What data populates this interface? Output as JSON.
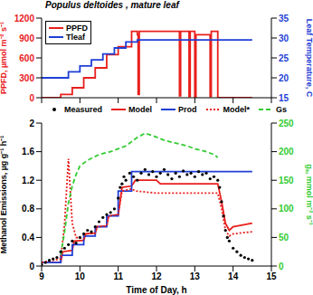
{
  "chart_data": [
    {
      "type": "line",
      "title": "Populus deltoides , mature leaf",
      "ylabel": "PPFD, µmol m⁻² s⁻¹",
      "y2label": "Leaf Temperature, C",
      "xlim": [
        9,
        15
      ],
      "xticks": [
        9,
        10,
        11,
        12,
        13,
        14,
        15
      ],
      "ylim": [
        0,
        1200
      ],
      "yticks": [
        0,
        300,
        600,
        900,
        1200
      ],
      "y2lim": [
        15,
        35
      ],
      "y2ticks": [
        15,
        20,
        25,
        30,
        35
      ],
      "tick_labels": "y",
      "legend": "upper left",
      "series": [
        {
          "name": "PPFD",
          "color": "#e8201c",
          "x": [
            9,
            9.5,
            9.5,
            9.8,
            9.8,
            10.1,
            10.1,
            10.4,
            10.4,
            10.7,
            10.7,
            11.0,
            11.0,
            11.35,
            11.35,
            11.5,
            11.5,
            11.52,
            11.52,
            11.55,
            11.55,
            12.6,
            12.6,
            12.63,
            12.63,
            12.85,
            12.85,
            12.88,
            12.88,
            13.0,
            13.0,
            13.03,
            13.03,
            13.4,
            13.4,
            13.43,
            13.43,
            13.6,
            13.6,
            14.5
          ],
          "values": [
            0,
            0,
            50,
            50,
            150,
            150,
            300,
            300,
            450,
            450,
            650,
            650,
            770,
            770,
            1000,
            1000,
            950,
            950,
            50,
            50,
            1000,
            1000,
            30,
            30,
            1000,
            1000,
            20,
            20,
            1000,
            1000,
            10,
            10,
            950,
            950,
            20,
            20,
            1000,
            1000,
            0,
            0
          ]
        },
        {
          "name": "Tleaf",
          "color": "#1f3fd6",
          "axis": "y2",
          "x": [
            9,
            9.7,
            9.7,
            10.0,
            10.0,
            10.3,
            10.3,
            10.6,
            10.6,
            10.9,
            10.9,
            11.2,
            11.2,
            11.5,
            11.5,
            14.5
          ],
          "values": [
            20,
            20,
            21.5,
            21.5,
            23,
            23,
            24.5,
            24.5,
            26,
            26,
            27.5,
            27.5,
            29,
            29,
            29.5,
            29.5
          ]
        }
      ]
    },
    {
      "type": "line",
      "xlabel": "Time of Day, h",
      "ylabel": "Methanol Emissions, µg g⁻¹ h⁻¹",
      "y2label": "gₛ, mmol m⁻² s⁻¹",
      "xlim": [
        9,
        15
      ],
      "xticks": [
        9,
        10,
        11,
        12,
        13,
        14,
        15
      ],
      "ylim": [
        0,
        2
      ],
      "yticks": [
        0,
        0.4,
        0.8,
        1.2,
        1.6,
        2
      ],
      "y2lim": [
        0,
        250
      ],
      "y2ticks": [
        0,
        50,
        100,
        150,
        200,
        250
      ],
      "legend": "top",
      "series": [
        {
          "name": "Measured",
          "color": "#000000",
          "type": "scatter",
          "marker": "circle",
          "x": [
            9.0,
            9.1,
            9.2,
            9.3,
            9.4,
            9.5,
            9.6,
            9.7,
            9.8,
            9.9,
            10.0,
            10.1,
            10.2,
            10.3,
            10.4,
            10.5,
            10.6,
            10.7,
            10.8,
            10.9,
            11.0,
            11.05,
            11.1,
            11.15,
            11.2,
            11.3,
            11.4,
            11.5,
            11.6,
            11.7,
            11.8,
            11.9,
            12.0,
            12.1,
            12.2,
            12.3,
            12.4,
            12.5,
            12.6,
            12.7,
            12.8,
            12.9,
            13.0,
            13.1,
            13.2,
            13.3,
            13.4,
            13.5,
            13.6,
            13.65,
            13.7,
            13.75,
            13.8,
            13.85,
            13.9,
            14.0,
            14.1,
            14.2,
            14.3,
            14.4,
            14.5
          ],
          "values": [
            0.02,
            0.05,
            0.08,
            0.1,
            0.12,
            0.2,
            0.25,
            0.3,
            0.35,
            0.32,
            0.4,
            0.45,
            0.5,
            0.48,
            0.55,
            0.62,
            0.68,
            0.72,
            0.75,
            0.8,
            0.95,
            1.1,
            1.15,
            1.25,
            1.2,
            1.3,
            1.25,
            1.2,
            1.3,
            1.35,
            1.28,
            1.32,
            1.25,
            1.3,
            1.35,
            1.28,
            1.22,
            1.3,
            1.25,
            1.33,
            1.28,
            1.3,
            1.25,
            1.32,
            1.28,
            1.3,
            1.22,
            1.25,
            1.2,
            1.1,
            0.9,
            0.7,
            0.5,
            0.4,
            0.35,
            0.25,
            0.2,
            0.15,
            0.12,
            0.1,
            0.08
          ]
        },
        {
          "name": "Model",
          "color": "#e8201c",
          "line_style": "solid",
          "x": [
            9,
            9.5,
            9.55,
            9.8,
            9.85,
            10.1,
            10.15,
            10.4,
            10.45,
            10.7,
            10.75,
            11.0,
            11.1,
            11.35,
            11.45,
            12.0,
            12.1,
            13.6,
            13.7,
            13.8,
            13.9,
            14.0,
            14.5
          ],
          "values": [
            0.05,
            0.05,
            0.2,
            0.22,
            0.35,
            0.36,
            0.45,
            0.46,
            0.55,
            0.56,
            0.7,
            0.72,
            1.1,
            1.12,
            1.2,
            1.2,
            1.15,
            1.15,
            0.9,
            0.6,
            0.5,
            0.55,
            0.6
          ]
        },
        {
          "name": "Prod",
          "color": "#1f3fd6",
          "line_style": "solid",
          "x": [
            9,
            9.5,
            9.5,
            9.8,
            9.8,
            10.1,
            10.1,
            10.4,
            10.4,
            10.7,
            10.7,
            11.0,
            11.0,
            11.35,
            11.35,
            14.5
          ],
          "values": [
            0.05,
            0.05,
            0.15,
            0.15,
            0.3,
            0.3,
            0.42,
            0.42,
            0.55,
            0.55,
            0.7,
            0.7,
            1.05,
            1.05,
            1.32,
            1.32
          ]
        },
        {
          "name": "Model*",
          "color": "#e8201c",
          "line_style": "dotted",
          "x": [
            9,
            9.5,
            9.6,
            9.7,
            9.8,
            9.9,
            10.1,
            10.15,
            10.4,
            10.45,
            10.7,
            10.75,
            11.0,
            11.1,
            11.35,
            11.45,
            12.0,
            13.6,
            13.7,
            13.8,
            13.9,
            14.0,
            14.5
          ],
          "values": [
            0.05,
            0.1,
            0.6,
            1.5,
            0.6,
            0.4,
            0.38,
            0.45,
            0.46,
            0.55,
            0.56,
            0.7,
            0.72,
            1.05,
            1.08,
            1.05,
            1.02,
            1.02,
            0.8,
            0.5,
            0.42,
            0.45,
            0.48
          ]
        },
        {
          "name": "Gs",
          "color": "#33cc33",
          "line_style": "dashed",
          "axis": "y2",
          "x": [
            9.5,
            9.6,
            9.7,
            9.8,
            9.9,
            10.0,
            10.2,
            10.5,
            10.8,
            11.0,
            11.2,
            11.5,
            11.7,
            11.9,
            12.2,
            12.5,
            12.8,
            13.0,
            13.3,
            13.5,
            13.6
          ],
          "values": [
            20,
            60,
            110,
            140,
            160,
            175,
            185,
            195,
            200,
            205,
            210,
            225,
            232,
            228,
            220,
            215,
            210,
            205,
            200,
            195,
            190
          ]
        }
      ]
    }
  ]
}
